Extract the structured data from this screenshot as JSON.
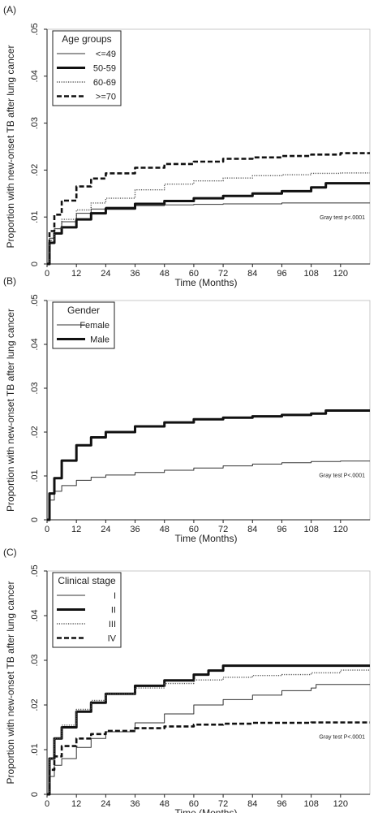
{
  "figure": {
    "panels": [
      {
        "label": "(A)",
        "ylabel": "Proportion with new-onset TB after lung cancer",
        "xlabel": "Time (Months)",
        "annotation": "Gray test p<.0001",
        "legend_title": "Age groups"
      },
      {
        "label": "(B)",
        "ylabel": "Proportion with new-onset TB after lung cancer",
        "xlabel": "Time (Months)",
        "annotation": "Gray test P<.0001",
        "legend_title": "Gender"
      },
      {
        "label": "(C)",
        "ylabel": "Proportion with new-onset TB after lung cancer",
        "xlabel": "Time (Months)",
        "annotation": "Gray test P<.0001",
        "legend_title": "Clinical stage"
      }
    ]
  },
  "chart_data": [
    {
      "type": "line",
      "title": "",
      "xlabel": "Time (Months)",
      "ylabel": "Proportion with new-onset TB after lung cancer",
      "xlim": [
        0,
        132
      ],
      "ylim": [
        0,
        0.05
      ],
      "xticks": [
        "0",
        "12",
        "24",
        "36",
        "48",
        "60",
        "72",
        "84",
        "96",
        "108",
        "120"
      ],
      "yticks": [
        "0",
        ".01",
        ".02",
        ".03",
        ".04",
        ".05"
      ],
      "grid": false,
      "legend": {
        "title": "Age groups",
        "placement": "top-left"
      },
      "series": [
        {
          "name": "<=49",
          "style": "thin",
          "x": [
            0,
            1,
            3,
            6,
            12,
            18,
            24,
            36,
            48,
            60,
            72,
            96,
            120,
            132
          ],
          "y": [
            0,
            0.0055,
            0.0075,
            0.009,
            0.0108,
            0.0117,
            0.0121,
            0.0124,
            0.0126,
            0.0127,
            0.0128,
            0.013,
            0.013,
            0.013
          ]
        },
        {
          "name": "50-59",
          "style": "thick",
          "x": [
            0,
            1,
            3,
            6,
            12,
            18,
            24,
            36,
            48,
            60,
            72,
            84,
            96,
            108,
            114,
            120,
            132
          ],
          "y": [
            0,
            0.0045,
            0.0065,
            0.0078,
            0.0095,
            0.0108,
            0.0118,
            0.0128,
            0.0134,
            0.014,
            0.0145,
            0.015,
            0.0155,
            0.0163,
            0.0172,
            0.0172,
            0.0172
          ]
        },
        {
          "name": "60-69",
          "style": "dotted",
          "x": [
            0,
            1,
            3,
            6,
            12,
            18,
            24,
            36,
            48,
            60,
            72,
            84,
            96,
            108,
            120,
            132
          ],
          "y": [
            0,
            0.005,
            0.0075,
            0.0095,
            0.0115,
            0.013,
            0.014,
            0.0158,
            0.017,
            0.0177,
            0.0183,
            0.0188,
            0.019,
            0.0193,
            0.0194,
            0.0194
          ]
        },
        {
          "name": ">=70",
          "style": "dashed",
          "x": [
            0,
            1,
            3,
            6,
            12,
            18,
            24,
            36,
            48,
            60,
            72,
            84,
            96,
            108,
            120,
            132
          ],
          "y": [
            0,
            0.007,
            0.0105,
            0.0135,
            0.0165,
            0.0182,
            0.0193,
            0.0205,
            0.0213,
            0.0218,
            0.0224,
            0.0227,
            0.023,
            0.0233,
            0.0236,
            0.0236
          ]
        }
      ]
    },
    {
      "type": "line",
      "title": "",
      "xlabel": "Time (Months)",
      "ylabel": "Proportion with new-onset TB after lung cancer",
      "xlim": [
        0,
        132
      ],
      "ylim": [
        0,
        0.05
      ],
      "xticks": [
        "0",
        "12",
        "24",
        "36",
        "48",
        "60",
        "72",
        "84",
        "96",
        "108",
        "120"
      ],
      "yticks": [
        "0",
        ".01",
        ".02",
        ".03",
        ".04",
        ".05"
      ],
      "grid": false,
      "legend": {
        "title": "Gender",
        "placement": "top-left"
      },
      "series": [
        {
          "name": "Female",
          "style": "thin",
          "x": [
            0,
            1,
            3,
            6,
            12,
            18,
            24,
            36,
            48,
            60,
            72,
            84,
            96,
            108,
            120,
            132
          ],
          "y": [
            0,
            0.0045,
            0.0065,
            0.0078,
            0.009,
            0.0097,
            0.0102,
            0.0108,
            0.0113,
            0.0118,
            0.0123,
            0.0127,
            0.013,
            0.0133,
            0.0134,
            0.0134
          ]
        },
        {
          "name": "Male",
          "style": "thick",
          "x": [
            0,
            1,
            3,
            6,
            12,
            18,
            24,
            36,
            48,
            60,
            72,
            84,
            96,
            108,
            114,
            120,
            132
          ],
          "y": [
            0,
            0.006,
            0.0095,
            0.0135,
            0.017,
            0.0188,
            0.02,
            0.0213,
            0.0222,
            0.0229,
            0.0233,
            0.0236,
            0.0239,
            0.0242,
            0.0249,
            0.0249,
            0.0249
          ]
        }
      ]
    },
    {
      "type": "line",
      "title": "",
      "xlabel": "Time (Months)",
      "ylabel": "Proportion with new-onset TB after lung cancer",
      "xlim": [
        0,
        132
      ],
      "ylim": [
        0,
        0.05
      ],
      "xticks": [
        "0",
        "12",
        "24",
        "36",
        "48",
        "60",
        "72",
        "84",
        "96",
        "108",
        "120"
      ],
      "yticks": [
        "0",
        ".01",
        ".02",
        ".03",
        ".04",
        ".05"
      ],
      "grid": false,
      "legend": {
        "title": "Clinical stage",
        "placement": "top-left"
      },
      "series": [
        {
          "name": "I",
          "style": "thin",
          "x": [
            0,
            1,
            3,
            6,
            12,
            18,
            24,
            36,
            48,
            60,
            72,
            84,
            96,
            108,
            110,
            120,
            132
          ],
          "y": [
            0,
            0.004,
            0.0065,
            0.008,
            0.0105,
            0.0125,
            0.014,
            0.016,
            0.018,
            0.02,
            0.0212,
            0.0222,
            0.0232,
            0.0238,
            0.0246,
            0.0246,
            0.0246
          ]
        },
        {
          "name": "II",
          "style": "thick",
          "x": [
            0,
            1,
            3,
            6,
            12,
            18,
            24,
            36,
            48,
            60,
            66,
            72,
            84,
            96,
            108,
            120,
            132
          ],
          "y": [
            0,
            0.008,
            0.0125,
            0.015,
            0.0185,
            0.0205,
            0.0225,
            0.0243,
            0.0255,
            0.0268,
            0.0277,
            0.0288,
            0.0288,
            0.0288,
            0.0288,
            0.0288,
            0.0288
          ]
        },
        {
          "name": "III",
          "style": "dotted",
          "x": [
            0,
            1,
            3,
            6,
            12,
            18,
            24,
            36,
            48,
            60,
            72,
            84,
            96,
            108,
            120,
            132
          ],
          "y": [
            0,
            0.008,
            0.0125,
            0.0155,
            0.019,
            0.021,
            0.0225,
            0.0238,
            0.0248,
            0.0256,
            0.0262,
            0.0266,
            0.0268,
            0.0272,
            0.0278,
            0.0278
          ]
        },
        {
          "name": "IV",
          "style": "dashed",
          "x": [
            0,
            1,
            3,
            6,
            12,
            18,
            24,
            36,
            48,
            60,
            72,
            84,
            96,
            108,
            120,
            132
          ],
          "y": [
            0,
            0.0055,
            0.0085,
            0.0108,
            0.0125,
            0.0135,
            0.0142,
            0.0148,
            0.0152,
            0.0156,
            0.0158,
            0.016,
            0.016,
            0.0161,
            0.0161,
            0.0161
          ]
        }
      ]
    }
  ]
}
